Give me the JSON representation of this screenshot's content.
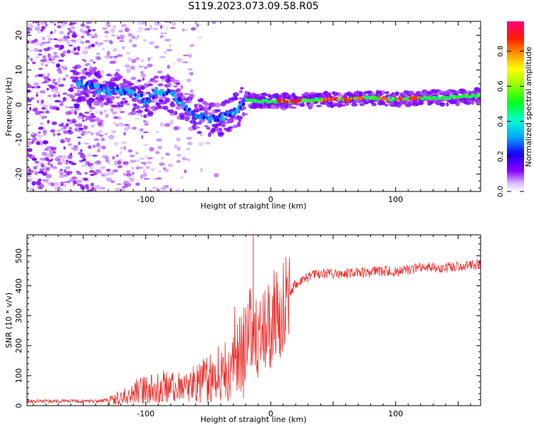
{
  "title": "S119.2023.073.09.58.R05",
  "colors": {
    "snr_line": "#e8312e",
    "frame": "#000000",
    "background": "#ffffff"
  },
  "chart_data": [
    {
      "type": "heatmap",
      "xlabel": "Height of straight line (km)",
      "ylabel": "Frequency (Hz)",
      "xlim": [
        -195,
        168
      ],
      "ylim": [
        -25,
        24
      ],
      "x_ticks": [
        -100,
        0,
        100
      ],
      "y_ticks": [
        -20,
        -10,
        0,
        10,
        20
      ],
      "grid": false,
      "colorbar": {
        "label": "Normalized spectral amplitude",
        "range": [
          0.0,
          0.97
        ],
        "ticks": [
          0.0,
          0.2,
          0.4,
          0.6,
          0.8
        ],
        "colormap": "rainbow (white → violet → blue → cyan → green → yellow → orange → red → magenta)"
      },
      "ridge": {
        "description": "frequency of peak spectral amplitude vs height",
        "x": [
          -150,
          -140,
          -130,
          -120,
          -110,
          -100,
          -90,
          -80,
          -70,
          -60,
          -50,
          -40,
          -30,
          -20,
          -10,
          0,
          20,
          40,
          60,
          80,
          100,
          120,
          140,
          160
        ],
        "y": [
          6,
          4.5,
          4,
          4,
          3,
          1,
          4,
          3,
          0,
          -3,
          -4,
          -4,
          -2,
          1.5,
          1,
          1,
          1,
          1.5,
          1.5,
          2,
          1.5,
          2,
          2,
          2.5
        ]
      }
    },
    {
      "type": "line",
      "xlabel": "Height of straight line (km)",
      "ylabel": "SNR (10 * v/v)",
      "xlim": [
        -195,
        168
      ],
      "ylim": [
        0,
        570
      ],
      "x_ticks": [
        -100,
        0,
        100
      ],
      "y_ticks": [
        0,
        100,
        200,
        300,
        400,
        500
      ],
      "grid": false,
      "series": [
        {
          "x": [
            -195,
            -180,
            -160,
            -140,
            -130,
            -120,
            -110,
            -100,
            -90,
            -80,
            -70,
            -60,
            -50,
            -40,
            -30,
            -20,
            -15,
            -10,
            -5,
            0,
            5,
            10,
            20,
            30,
            40,
            60,
            80,
            90,
            100,
            120,
            140,
            160,
            168
          ],
          "y": [
            15,
            15,
            15,
            15,
            20,
            25,
            45,
            55,
            60,
            65,
            55,
            75,
            90,
            110,
            150,
            220,
            240,
            200,
            230,
            250,
            290,
            340,
            410,
            430,
            440,
            440,
            445,
            450,
            445,
            460,
            460,
            470,
            470
          ],
          "max": 570,
          "min": 0
        }
      ]
    }
  ]
}
